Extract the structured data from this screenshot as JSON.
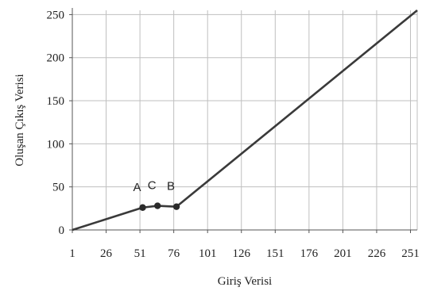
{
  "chart_data": {
    "type": "line",
    "title": "",
    "xlabel": "Giriş Verisi",
    "ylabel": "Oluşan Çıkış Verisi",
    "x_ticks": [
      1,
      26,
      51,
      76,
      101,
      126,
      151,
      176,
      201,
      226,
      251
    ],
    "y_ticks": [
      0,
      50,
      100,
      150,
      200,
      250
    ],
    "xlim": [
      1,
      256
    ],
    "ylim": [
      0,
      255
    ],
    "grid": true,
    "series": [
      {
        "name": "",
        "color": "#3a3a3a",
        "points": [
          [
            1,
            0
          ],
          [
            53,
            26
          ],
          [
            64,
            28
          ],
          [
            78,
            27
          ],
          [
            256,
            255
          ]
        ]
      }
    ],
    "markers": [
      {
        "label": "A",
        "x": 53,
        "y": 26
      },
      {
        "label": "C",
        "x": 64,
        "y": 28
      },
      {
        "label": "B",
        "x": 78,
        "y": 27
      }
    ]
  }
}
